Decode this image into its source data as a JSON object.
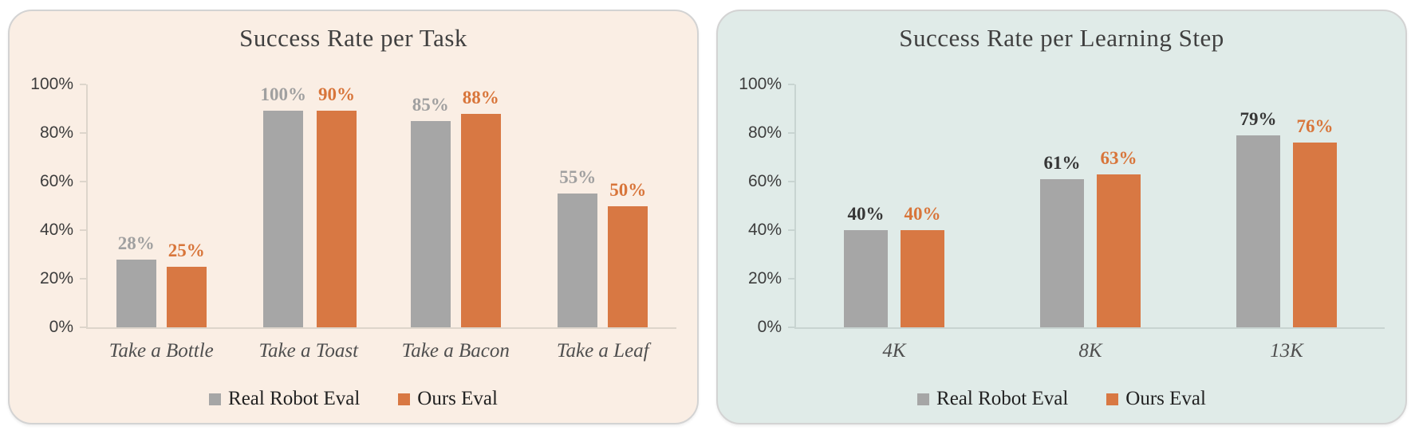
{
  "figure": {
    "background": "#ffffff"
  },
  "chart_data": [
    {
      "type": "bar",
      "title": "Success Rate per Task",
      "card_background": "#faeee4",
      "categories": [
        "Take a Bottle",
        "Take a Toast",
        "Take a Bacon",
        "Take a Leaf"
      ],
      "series": [
        {
          "name": "Real Robot Eval",
          "color": "#a6a6a6",
          "label_color": "#a0a0a0",
          "values": [
            28,
            100,
            85,
            55
          ],
          "labels": [
            "28%",
            "100%",
            "85%",
            "55%"
          ]
        },
        {
          "name": "Ours Eval",
          "color": "#d87843",
          "label_color": "#d8753a",
          "values": [
            25,
            90,
            88,
            50
          ],
          "labels": [
            "25%",
            "90%",
            "88%",
            "50%"
          ]
        }
      ],
      "ylim": [
        0,
        100
      ],
      "yticklabels": [
        "100%",
        "80%",
        "60%",
        "40%",
        "20%",
        "0%"
      ],
      "xlabel": "",
      "ylabel": "",
      "grid": false,
      "legend_position": "bottom"
    },
    {
      "type": "bar",
      "title": "Success Rate per Learning Step",
      "card_background": "#e0ebe8",
      "categories": [
        "4K",
        "8K",
        "13K"
      ],
      "series": [
        {
          "name": "Real Robot Eval",
          "color": "#a6a6a6",
          "label_color": "#363636",
          "values": [
            40,
            61,
            79
          ],
          "labels": [
            "40%",
            "61%",
            "79%"
          ]
        },
        {
          "name": "Ours Eval",
          "color": "#d87843",
          "label_color": "#d8753a",
          "values": [
            40,
            63,
            76
          ],
          "labels": [
            "40%",
            "63%",
            "76%"
          ]
        }
      ],
      "ylim": [
        0,
        100
      ],
      "yticklabels": [
        "100%",
        "80%",
        "60%",
        "40%",
        "20%",
        "0%"
      ],
      "xlabel": "",
      "ylabel": "",
      "grid": false,
      "legend_position": "bottom"
    }
  ]
}
